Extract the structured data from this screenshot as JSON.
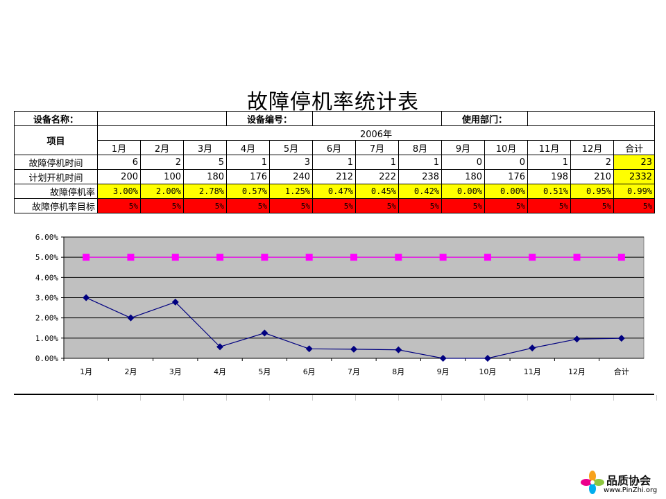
{
  "title": "故障停机率统计表",
  "info": {
    "equipment_label": "设备名称：",
    "code_label": "设备编号：",
    "dept_label": "使用部门："
  },
  "table": {
    "item_label": "项目",
    "year_label": "2006年",
    "months": [
      "1月",
      "2月",
      "3月",
      "4月",
      "5月",
      "6月",
      "7月",
      "8月",
      "9月",
      "10月",
      "11月",
      "12月",
      "合计"
    ],
    "rows": [
      {
        "label": "故障停机时间",
        "values": [
          "6",
          "2",
          "5",
          "1",
          "3",
          "1",
          "1",
          "1",
          "0",
          "0",
          "1",
          "2",
          "23"
        ]
      },
      {
        "label": "计划开机时间",
        "values": [
          "200",
          "100",
          "180",
          "176",
          "240",
          "212",
          "222",
          "238",
          "180",
          "176",
          "198",
          "210",
          "2332"
        ]
      },
      {
        "label": "故障停机率",
        "values": [
          "3.00%",
          "2.00%",
          "2.78%",
          "0.57%",
          "1.25%",
          "0.47%",
          "0.45%",
          "0.42%",
          "0.00%",
          "0.00%",
          "0.51%",
          "0.95%",
          "0.99%"
        ]
      },
      {
        "label": "故障停机率目标",
        "values": [
          "5%",
          "5%",
          "5%",
          "5%",
          "5%",
          "5%",
          "5%",
          "5%",
          "5%",
          "5%",
          "5%",
          "5%",
          "5%"
        ]
      }
    ]
  },
  "chart_data": {
    "type": "line",
    "categories": [
      "1月",
      "2月",
      "3月",
      "4月",
      "5月",
      "6月",
      "7月",
      "8月",
      "9月",
      "10月",
      "11月",
      "12月",
      "合计"
    ],
    "series": [
      {
        "name": "",
        "color": "#000080",
        "marker": "diamond",
        "values": [
          3.0,
          2.0,
          2.78,
          0.57,
          1.25,
          0.47,
          0.45,
          0.42,
          0.0,
          0.0,
          0.51,
          0.95,
          0.99
        ]
      },
      {
        "name": "",
        "color": "#ff00ff",
        "marker": "square",
        "values": [
          5,
          5,
          5,
          5,
          5,
          5,
          5,
          5,
          5,
          5,
          5,
          5,
          5
        ]
      }
    ],
    "ylim": [
      0,
      6
    ],
    "yticks": [
      "0.00%",
      "1.00%",
      "2.00%",
      "3.00%",
      "4.00%",
      "5.00%",
      "6.00%"
    ],
    "plot_background": "#c0c0c0",
    "grid": true,
    "title": "",
    "xlabel": "",
    "ylabel": ""
  },
  "logo": {
    "name": "品质协会",
    "url": "www.PinZhi.org"
  }
}
